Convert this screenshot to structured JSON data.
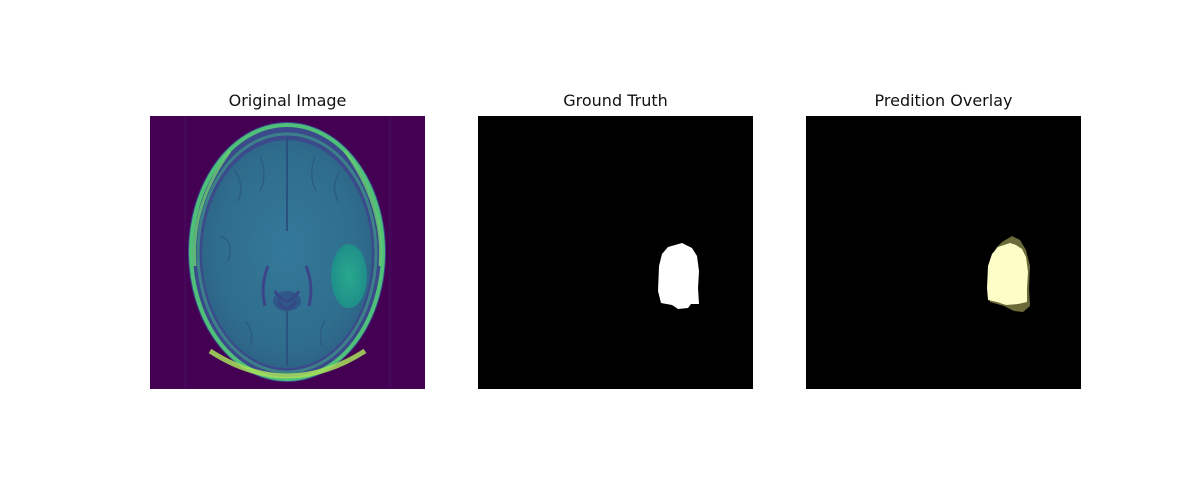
{
  "figure": {
    "panels": [
      {
        "title": "Original Image"
      },
      {
        "title": "Ground Truth"
      },
      {
        "title": "Predition Overlay"
      }
    ]
  },
  "colors": {
    "background": "#ffffff",
    "mri_background": "#440154",
    "brain_tissue": "#2f6f8e",
    "skull_ring": "#4fc07a",
    "lesion_original": "#23a28a",
    "mask_background": "#000000",
    "ground_truth_mask": "#ffffff",
    "prediction_overlay": "#fdfdc8",
    "prediction_edge": "#6b6b3a"
  }
}
